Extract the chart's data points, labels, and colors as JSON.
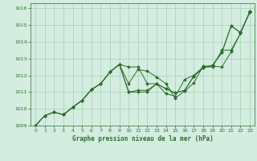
{
  "title": "Graphe pression niveau de la mer (hPa)",
  "bg_color": "#d4ede0",
  "grid_color": "#a8ccb8",
  "line_color": "#2d6e2d",
  "xlim": [
    -0.5,
    23.5
  ],
  "ylim": [
    1009,
    1016.3
  ],
  "yticks": [
    1009,
    1010,
    1011,
    1012,
    1013,
    1014,
    1015,
    1016
  ],
  "xticks": [
    0,
    1,
    2,
    3,
    4,
    5,
    6,
    7,
    8,
    9,
    10,
    11,
    12,
    13,
    14,
    15,
    16,
    17,
    18,
    19,
    20,
    21,
    22,
    23
  ],
  "series": [
    {
      "x": [
        0,
        1,
        2,
        3,
        4,
        5,
        6,
        7,
        8,
        9,
        10,
        11,
        12,
        13,
        14,
        15,
        16,
        17,
        18,
        19,
        20,
        21,
        22,
        23
      ],
      "y": [
        1009.0,
        1009.6,
        1009.8,
        1009.65,
        1010.1,
        1010.5,
        1011.15,
        1011.5,
        1012.2,
        1012.65,
        1012.5,
        1012.5,
        1011.5,
        1011.5,
        1010.9,
        1010.75,
        1011.75,
        1012.0,
        1012.5,
        1012.5,
        1013.5,
        1013.5,
        1014.5,
        1015.8
      ]
    },
    {
      "x": [
        0,
        1,
        2,
        3,
        4,
        5,
        6,
        7,
        8,
        9,
        10,
        11,
        12,
        13,
        14,
        15,
        16,
        17,
        18,
        19,
        20,
        21,
        22,
        23
      ],
      "y": [
        1009.0,
        1009.6,
        1009.8,
        1009.65,
        1010.1,
        1010.5,
        1011.15,
        1011.5,
        1012.2,
        1012.65,
        1011.5,
        1012.35,
        1012.25,
        1011.9,
        1011.5,
        1010.65,
        1011.05,
        1011.55,
        1012.55,
        1012.55,
        1012.5,
        1013.4,
        1014.5,
        1015.8
      ]
    },
    {
      "x": [
        0,
        1,
        2,
        3,
        4,
        5,
        6,
        7,
        8,
        9,
        10,
        11,
        12,
        13,
        14,
        15,
        16,
        17,
        18,
        19,
        20,
        21,
        22,
        23
      ],
      "y": [
        1009.0,
        1009.6,
        1009.8,
        1009.65,
        1010.1,
        1010.5,
        1011.15,
        1011.5,
        1012.2,
        1012.65,
        1011.0,
        1011.1,
        1011.1,
        1011.5,
        1011.2,
        1010.95,
        1011.1,
        1011.95,
        1012.45,
        1012.6,
        1013.35,
        1014.95,
        1014.55,
        1015.75
      ]
    },
    {
      "x": [
        3,
        4,
        5,
        6,
        7,
        8,
        9,
        10,
        11,
        12,
        13,
        14,
        15,
        16,
        17,
        18,
        19,
        20,
        21,
        22,
        23
      ],
      "y": [
        1009.65,
        1010.1,
        1010.5,
        1011.15,
        1011.5,
        1012.2,
        1012.65,
        1011.0,
        1011.0,
        1011.0,
        1011.5,
        1011.2,
        1010.95,
        1011.1,
        1011.95,
        1012.45,
        1012.6,
        1013.35,
        1014.95,
        1014.55,
        1015.75
      ]
    }
  ]
}
